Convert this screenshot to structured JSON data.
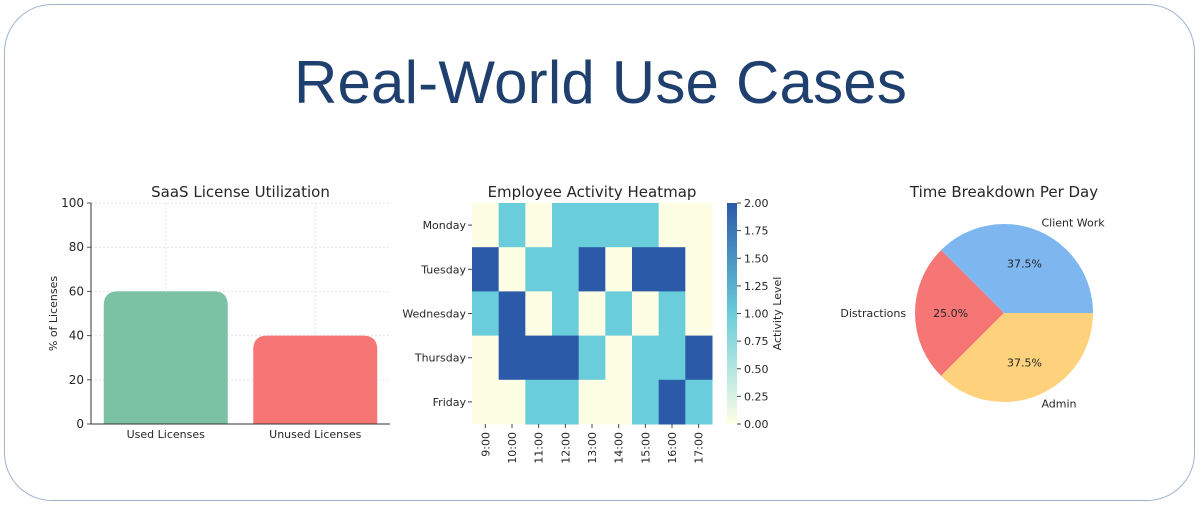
{
  "slide": {
    "title": "Real-World Use Cases"
  },
  "chart_data": [
    {
      "type": "bar",
      "title": "SaaS License Utilization",
      "xlabel": "",
      "ylabel": "% of Licenses",
      "categories": [
        "Used Licenses",
        "Unused Licenses"
      ],
      "values": [
        60,
        40
      ],
      "colors": [
        "#7bc1a3",
        "#f67676"
      ],
      "ylim": [
        0,
        100
      ],
      "yticks": [
        0,
        20,
        40,
        60,
        80,
        100
      ],
      "grid": true
    },
    {
      "type": "heatmap",
      "title": "Employee Activity Heatmap",
      "rows": [
        "Monday",
        "Tuesday",
        "Wednesday",
        "Thursday",
        "Friday"
      ],
      "columns": [
        "9:00",
        "10:00",
        "11:00",
        "12:00",
        "13:00",
        "14:00",
        "15:00",
        "16:00",
        "17:00"
      ],
      "values": [
        [
          0,
          1,
          0,
          1,
          1,
          1,
          1,
          0,
          0
        ],
        [
          2,
          0,
          1,
          1,
          2,
          0,
          2,
          2,
          0
        ],
        [
          1,
          2,
          0,
          1,
          0,
          1,
          0,
          1,
          0
        ],
        [
          0,
          2,
          2,
          2,
          1,
          0,
          1,
          1,
          2
        ],
        [
          0,
          0,
          1,
          1,
          0,
          0,
          1,
          2,
          1
        ]
      ],
      "colorbar": {
        "label": "Activity Level",
        "range": [
          0,
          2
        ],
        "ticks": [
          "0.00",
          "0.25",
          "0.50",
          "0.75",
          "1.00",
          "1.25",
          "1.50",
          "1.75",
          "2.00"
        ]
      },
      "colors": {
        "low": "#fefee4",
        "mid": "#6acddb",
        "high": "#2b5aa8"
      }
    },
    {
      "type": "pie",
      "title": "Time Breakdown Per Day",
      "slices": [
        {
          "label": "Client Work",
          "value": 37.5,
          "pct_label": "37.5%",
          "color": "#7eb6ef"
        },
        {
          "label": "Distractions",
          "value": 25.0,
          "pct_label": "25.0%",
          "color": "#f67676"
        },
        {
          "label": "Admin",
          "value": 37.5,
          "pct_label": "37.5%",
          "color": "#fed27c"
        }
      ]
    }
  ]
}
